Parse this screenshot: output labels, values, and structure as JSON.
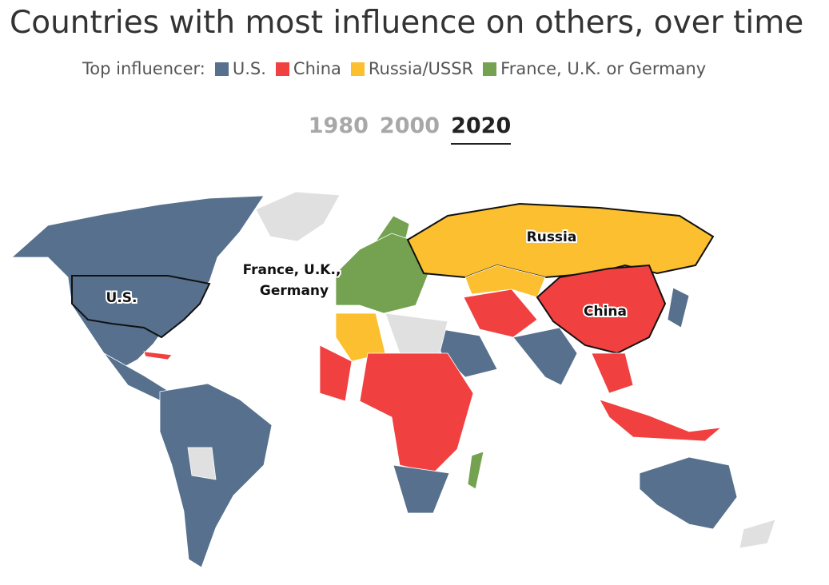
{
  "header": {
    "title": "Countries with most influence on others, over time"
  },
  "legend": {
    "label": "Top influencer:",
    "items": [
      {
        "name": "U.S.",
        "color": "#56708e"
      },
      {
        "name": "China",
        "color": "#f0403f"
      },
      {
        "name": "Russia/USSR",
        "color": "#fbbf2f"
      },
      {
        "name": "France, U.K. or Germany",
        "color": "#74a250"
      }
    ]
  },
  "years": {
    "options": [
      "1980",
      "2000",
      "2020"
    ],
    "selected": 2
  },
  "map_labels": [
    "Russia",
    "China",
    "U.S.",
    "France, U.K.,",
    "Germany"
  ]
}
